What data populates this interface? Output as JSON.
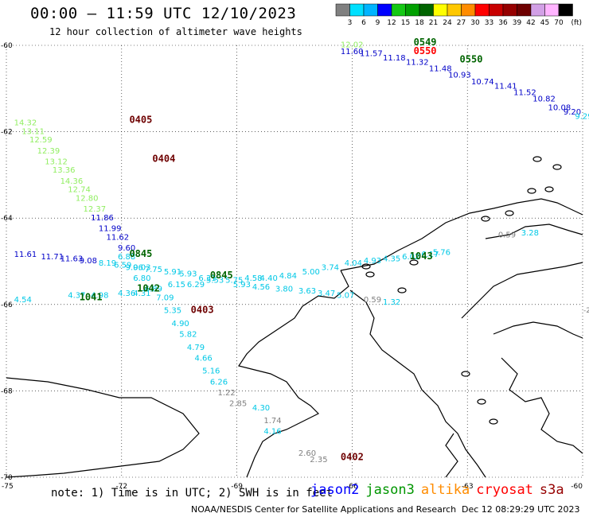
{
  "header": {
    "title": "00:00 – 11:59 UTC 12/10/2023",
    "subtitle": "12 hour collection of altimeter wave heights"
  },
  "colorbar": {
    "colors": [
      "#808080",
      "#00e0ff",
      "#00b4ff",
      "#0000ff",
      "#14c814",
      "#00a000",
      "#006400",
      "#ffff00",
      "#ffc800",
      "#ff8c00",
      "#ff0000",
      "#c80000",
      "#960000",
      "#6e0000",
      "#d2a0e6",
      "#ffb4ff",
      "#000000"
    ],
    "labels": [
      "3",
      "6",
      "9",
      "12",
      "15",
      "18",
      "21",
      "24",
      "27",
      "30",
      "33",
      "36",
      "39",
      "42",
      "45",
      "70"
    ],
    "unit": "(ft)"
  },
  "map": {
    "lat_labels": [
      "-60",
      "-62",
      "-64",
      "-66",
      "-68",
      "-70"
    ],
    "lat_values": [
      -60,
      -62,
      -64,
      -66,
      -68,
      -70
    ],
    "lon_labels": [
      "-75",
      "-72",
      "-69",
      "-66",
      "-63",
      "-60"
    ],
    "lon_values": [
      -75,
      -72,
      -69,
      -66,
      -63,
      -60
    ],
    "right_edge_label": "-2",
    "time_labels": [
      {
        "text": "0405",
        "lon": -71.8,
        "lat": -61.8,
        "color": "#6e0000"
      },
      {
        "text": "0404",
        "lon": -71.2,
        "lat": -62.7,
        "color": "#6e0000"
      },
      {
        "text": "0403",
        "lon": -70.2,
        "lat": -66.2,
        "color": "#6e0000"
      },
      {
        "text": "0402",
        "lon": -66.3,
        "lat": -69.6,
        "color": "#6e0000"
      },
      {
        "text": "0845",
        "lon": -71.8,
        "lat": -64.9,
        "color": "#006400"
      },
      {
        "text": "0845",
        "lon": -69.7,
        "lat": -65.4,
        "color": "#006400"
      },
      {
        "text": "1041",
        "lon": -73.1,
        "lat": -65.9,
        "color": "#006400"
      },
      {
        "text": "1042",
        "lon": -71.6,
        "lat": -65.7,
        "color": "#006400"
      },
      {
        "text": "1043",
        "lon": -64.5,
        "lat": -64.95,
        "color": "#006400"
      },
      {
        "text": "0549",
        "lon": -64.4,
        "lat": -60.0,
        "color": "#006400"
      },
      {
        "text": "0550",
        "lon": -63.2,
        "lat": -60.4,
        "color": "#006400"
      },
      {
        "text": "0550",
        "lon": -64.4,
        "lat": -60.2,
        "color": "#ff0000"
      }
    ],
    "swh_labels": [
      {
        "text": "14.32",
        "lon": -74.8,
        "lat": -61.85,
        "color": "#90ee60"
      },
      {
        "text": "13.11",
        "lon": -74.6,
        "lat": -62.05,
        "color": "#90ee60"
      },
      {
        "text": "12.59",
        "lon": -74.4,
        "lat": -62.25,
        "color": "#90ee60"
      },
      {
        "text": "12.39",
        "lon": -74.2,
        "lat": -62.5,
        "color": "#90ee60"
      },
      {
        "text": "13.12",
        "lon": -74.0,
        "lat": -62.75,
        "color": "#90ee60"
      },
      {
        "text": "13.36",
        "lon": -73.8,
        "lat": -62.95,
        "color": "#90ee60"
      },
      {
        "text": "14.36",
        "lon": -73.6,
        "lat": -63.2,
        "color": "#90ee60"
      },
      {
        "text": "12.74",
        "lon": -73.4,
        "lat": -63.4,
        "color": "#90ee60"
      },
      {
        "text": "12.80",
        "lon": -73.2,
        "lat": -63.6,
        "color": "#90ee60"
      },
      {
        "text": "12.37",
        "lon": -73.0,
        "lat": -63.85,
        "color": "#90ee60"
      },
      {
        "text": "11.86",
        "lon": -72.8,
        "lat": -64.05,
        "color": "#0000c8"
      },
      {
        "text": "11.99",
        "lon": -72.6,
        "lat": -64.3,
        "color": "#0000c8"
      },
      {
        "text": "11.62",
        "lon": -72.4,
        "lat": -64.5,
        "color": "#0000c8"
      },
      {
        "text": "9.60",
        "lon": -72.1,
        "lat": -64.75,
        "color": "#0000c8"
      },
      {
        "text": "11.61",
        "lon": -74.8,
        "lat": -64.9,
        "color": "#0000c8"
      },
      {
        "text": "11.71",
        "lon": -74.1,
        "lat": -64.95,
        "color": "#0000c8"
      },
      {
        "text": "11.63",
        "lon": -73.6,
        "lat": -65.0,
        "color": "#0000c8"
      },
      {
        "text": "9.08",
        "lon": -73.1,
        "lat": -65.05,
        "color": "#0000c8"
      },
      {
        "text": "8.19",
        "lon": -72.6,
        "lat": -65.1,
        "color": "#00c8e6"
      },
      {
        "text": "6.88",
        "lon": -72.1,
        "lat": -64.95,
        "color": "#00c8e6"
      },
      {
        "text": "6.59",
        "lon": -72.2,
        "lat": -65.15,
        "color": "#00c8e6"
      },
      {
        "text": "9.03",
        "lon": -71.7,
        "lat": -65.2,
        "color": "#00c8e6"
      },
      {
        "text": "9.06",
        "lon": -71.9,
        "lat": -65.2,
        "color": "#00c8e6"
      },
      {
        "text": "7.75",
        "lon": -71.4,
        "lat": -65.25,
        "color": "#00c8e6"
      },
      {
        "text": "5.91",
        "lon": -70.9,
        "lat": -65.3,
        "color": "#00c8e6"
      },
      {
        "text": "6.80",
        "lon": -71.7,
        "lat": -65.45,
        "color": "#00c8e6"
      },
      {
        "text": "5.93",
        "lon": -70.5,
        "lat": -65.35,
        "color": "#00c8e6"
      },
      {
        "text": "6.31",
        "lon": -70.0,
        "lat": -65.45,
        "color": "#00c8e6"
      },
      {
        "text": "5.53",
        "lon": -69.8,
        "lat": -65.5,
        "color": "#00c8e6"
      },
      {
        "text": "6.15",
        "lon": -70.8,
        "lat": -65.6,
        "color": "#00c8e6"
      },
      {
        "text": "6.29",
        "lon": -70.3,
        "lat": -65.6,
        "color": "#00c8e6"
      },
      {
        "text": "6.89",
        "lon": -71.4,
        "lat": -65.7,
        "color": "#00c8e6"
      },
      {
        "text": "7.09",
        "lon": -71.1,
        "lat": -65.9,
        "color": "#00c8e6"
      },
      {
        "text": "4.54",
        "lon": -74.8,
        "lat": -65.95,
        "color": "#00c8e6"
      },
      {
        "text": "4.37",
        "lon": -73.4,
        "lat": -65.85,
        "color": "#00c8e6"
      },
      {
        "text": "4.98",
        "lon": -72.8,
        "lat": -65.85,
        "color": "#00c8e6"
      },
      {
        "text": "4.36",
        "lon": -72.1,
        "lat": -65.8,
        "color": "#00c8e6"
      },
      {
        "text": "4.31",
        "lon": -71.7,
        "lat": -65.8,
        "color": "#00c8e6"
      },
      {
        "text": "5.75",
        "lon": -69.3,
        "lat": -65.5,
        "color": "#00c8e6"
      },
      {
        "text": "4.58",
        "lon": -68.8,
        "lat": -65.45,
        "color": "#00c8e6"
      },
      {
        "text": "4.40",
        "lon": -68.4,
        "lat": -65.45,
        "color": "#00c8e6"
      },
      {
        "text": "4.84",
        "lon": -67.9,
        "lat": -65.4,
        "color": "#00c8e6"
      },
      {
        "text": "5.00",
        "lon": -67.3,
        "lat": -65.3,
        "color": "#00c8e6"
      },
      {
        "text": "3.74",
        "lon": -66.8,
        "lat": -65.2,
        "color": "#00c8e6"
      },
      {
        "text": "4.04",
        "lon": -66.2,
        "lat": -65.1,
        "color": "#00c8e6"
      },
      {
        "text": "4.93",
        "lon": -65.7,
        "lat": -65.05,
        "color": "#00c8e6"
      },
      {
        "text": "4.35",
        "lon": -65.2,
        "lat": -65.0,
        "color": "#00c8e6"
      },
      {
        "text": "6.02",
        "lon": -64.7,
        "lat": -64.95,
        "color": "#00c8e6"
      },
      {
        "text": "6.17",
        "lon": -64.2,
        "lat": -64.9,
        "color": "#00c8e6"
      },
      {
        "text": "5.76",
        "lon": -63.9,
        "lat": -64.85,
        "color": "#00c8e6"
      },
      {
        "text": "5.93",
        "lon": -69.1,
        "lat": -65.6,
        "color": "#00c8e6"
      },
      {
        "text": "4.56",
        "lon": -68.6,
        "lat": -65.65,
        "color": "#00c8e6"
      },
      {
        "text": "3.80",
        "lon": -68.0,
        "lat": -65.7,
        "color": "#00c8e6"
      },
      {
        "text": "3.63",
        "lon": -67.4,
        "lat": -65.75,
        "color": "#00c8e6"
      },
      {
        "text": "3.47",
        "lon": -66.9,
        "lat": -65.8,
        "color": "#00c8e6"
      },
      {
        "text": "5.07",
        "lon": -66.4,
        "lat": -65.85,
        "color": "#00c8e6"
      },
      {
        "text": "5.35",
        "lon": -70.9,
        "lat": -66.2,
        "color": "#00c8e6"
      },
      {
        "text": "4.90",
        "lon": -70.7,
        "lat": -66.5,
        "color": "#00c8e6"
      },
      {
        "text": "5.82",
        "lon": -70.5,
        "lat": -66.75,
        "color": "#00c8e6"
      },
      {
        "text": "4.79",
        "lon": -70.3,
        "lat": -67.05,
        "color": "#00c8e6"
      },
      {
        "text": "4.66",
        "lon": -70.1,
        "lat": -67.3,
        "color": "#00c8e6"
      },
      {
        "text": "5.16",
        "lon": -69.9,
        "lat": -67.6,
        "color": "#00c8e6"
      },
      {
        "text": "6.26",
        "lon": -69.7,
        "lat": -67.85,
        "color": "#00c8e6"
      },
      {
        "text": "4.30",
        "lon": -68.6,
        "lat": -68.45,
        "color": "#00c8e6"
      },
      {
        "text": "4.16",
        "lon": -68.3,
        "lat": -69.0,
        "color": "#00c8e6"
      },
      {
        "text": "1.22",
        "lon": -69.5,
        "lat": -68.1,
        "color": "#808080"
      },
      {
        "text": "2.85",
        "lon": -69.2,
        "lat": -68.35,
        "color": "#808080"
      },
      {
        "text": "1.74",
        "lon": -68.3,
        "lat": -68.75,
        "color": "#808080"
      },
      {
        "text": "2.60",
        "lon": -67.4,
        "lat": -69.5,
        "color": "#808080"
      },
      {
        "text": "2.35",
        "lon": -67.1,
        "lat": -69.65,
        "color": "#808080"
      },
      {
        "text": "0.59",
        "lon": -65.7,
        "lat": -65.95,
        "color": "#808080"
      },
      {
        "text": "1.32",
        "lon": -65.2,
        "lat": -66.0,
        "color": "#00c8e6"
      },
      {
        "text": "0.59",
        "lon": -62.2,
        "lat": -64.45,
        "color": "#808080"
      },
      {
        "text": "3.28",
        "lon": -61.6,
        "lat": -64.4,
        "color": "#00c8e6"
      },
      {
        "text": "12.02",
        "lon": -66.3,
        "lat": -60.05,
        "color": "#90ee60"
      },
      {
        "text": "11.60",
        "lon": -66.3,
        "lat": -60.2,
        "color": "#0000c8"
      },
      {
        "text": "11.57",
        "lon": -65.8,
        "lat": -60.25,
        "color": "#0000c8"
      },
      {
        "text": "11.18",
        "lon": -65.2,
        "lat": -60.35,
        "color": "#0000c8"
      },
      {
        "text": "11.32",
        "lon": -64.6,
        "lat": -60.45,
        "color": "#0000c8"
      },
      {
        "text": "11.48",
        "lon": -64.0,
        "lat": -60.6,
        "color": "#0000c8"
      },
      {
        "text": "10.93",
        "lon": -63.5,
        "lat": -60.75,
        "color": "#0000c8"
      },
      {
        "text": "10.74",
        "lon": -62.9,
        "lat": -60.9,
        "color": "#0000c8"
      },
      {
        "text": "11.41",
        "lon": -62.3,
        "lat": -61.0,
        "color": "#0000c8"
      },
      {
        "text": "11.52",
        "lon": -61.8,
        "lat": -61.15,
        "color": "#0000c8"
      },
      {
        "text": "10.82",
        "lon": -61.3,
        "lat": -61.3,
        "color": "#0000c8"
      },
      {
        "text": "10.08",
        "lon": -60.9,
        "lat": -61.5,
        "color": "#0000c8"
      },
      {
        "text": "9.20",
        "lon": -60.5,
        "lat": -61.6,
        "color": "#0000c8"
      },
      {
        "text": "9.29",
        "lon": -60.2,
        "lat": -61.7,
        "color": "#00c8e6"
      }
    ]
  },
  "footer": {
    "note": "note: 1) Time is in UTC; 2) SWH is in feet",
    "legend": [
      {
        "name": "jason2",
        "color": "#0000ff"
      },
      {
        "name": "jason3",
        "color": "#009600"
      },
      {
        "name": "altika",
        "color": "#ff8c00"
      },
      {
        "name": "cryosat",
        "color": "#ff0000"
      },
      {
        "name": "s3a",
        "color": "#960000"
      }
    ],
    "credit": "NOAA/NESDIS Center for Satellite Applications and Research",
    "timestamp": "Dec 12 08:29:29 UTC 2023"
  }
}
